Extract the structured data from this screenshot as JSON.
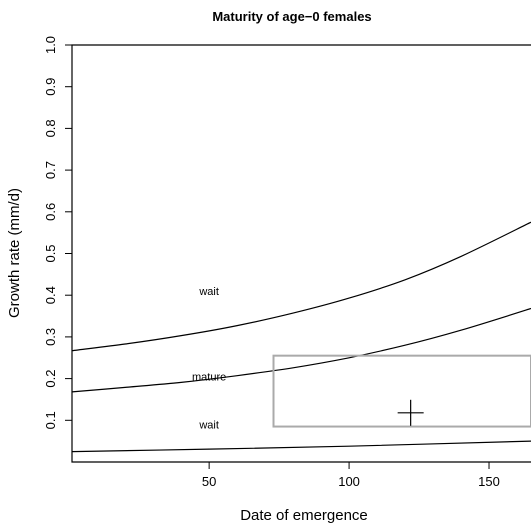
{
  "chart_data": {
    "type": "line",
    "title": "Maturity of age−0 females",
    "xlabel": "Date of emergence",
    "ylabel": "Growth rate (mm/d)",
    "xlim": [
      1,
      165
    ],
    "ylim": [
      0,
      1.0
    ],
    "x_ticks": [
      50,
      100,
      150
    ],
    "y_ticks": [
      0.1,
      0.2,
      0.3,
      0.4,
      0.5,
      0.6,
      0.7,
      0.8,
      0.9,
      1.0
    ],
    "grid": false,
    "series": [
      {
        "x": [
          1,
          20,
          40,
          60,
          80,
          100,
          120,
          140,
          165
        ],
        "y": [
          0.267,
          0.283,
          0.303,
          0.327,
          0.357,
          0.393,
          0.437,
          0.493,
          0.575
        ]
      },
      {
        "x": [
          1,
          20,
          40,
          60,
          80,
          100,
          120,
          140,
          165
        ],
        "y": [
          0.168,
          0.179,
          0.191,
          0.207,
          0.226,
          0.25,
          0.28,
          0.316,
          0.368
        ]
      },
      {
        "x": [
          1,
          50,
          100,
          165
        ],
        "y": [
          0.025,
          0.031,
          0.038,
          0.05
        ]
      }
    ],
    "annotations": [
      {
        "text": "wait",
        "x": 50,
        "y": 0.4
      },
      {
        "text": "mature",
        "x": 50,
        "y": 0.195
      },
      {
        "text": "wait",
        "x": 50,
        "y": 0.08
      }
    ],
    "box": {
      "x": [
        73,
        165
      ],
      "y": [
        0.085,
        0.255
      ],
      "color": "#aaaaaa"
    },
    "marker": {
      "shape": "plus",
      "x": 122,
      "y": 0.118
    }
  }
}
